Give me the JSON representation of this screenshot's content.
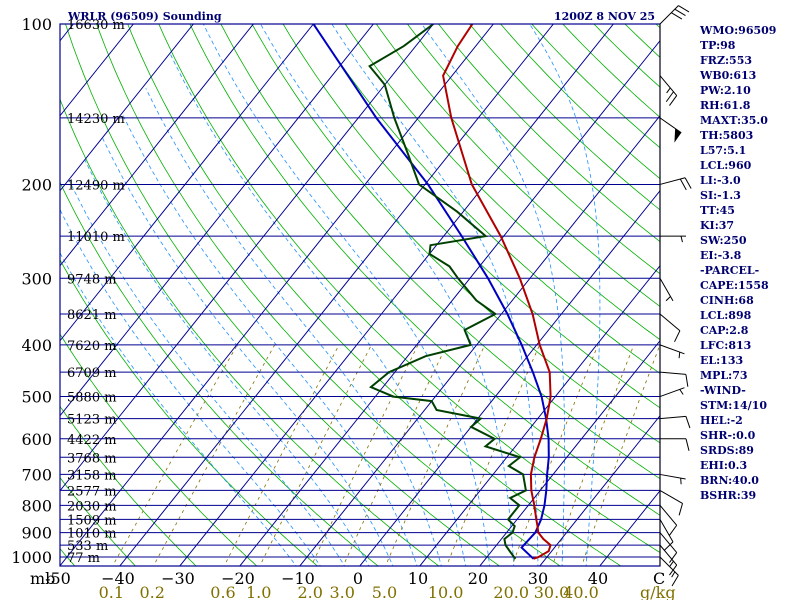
{
  "header": {
    "left": "WRLR (96509) Sounding",
    "right": "1200Z  8 NOV 25"
  },
  "chart_data": {
    "type": "skew-t",
    "title": "WRLR (96509) Sounding",
    "time": "1200Z  8 NOV 25",
    "pressure_ticks": [
      100,
      200,
      300,
      400,
      500,
      600,
      700,
      800,
      900,
      1000
    ],
    "temperature_ticks": [
      -50,
      -40,
      -30,
      -20,
      -10,
      0,
      10,
      20,
      30,
      40
    ],
    "temperature_labels": [
      "-50",
      "−40",
      "−30",
      "−20",
      "−10",
      "0",
      "10",
      "20",
      "30",
      "40"
    ],
    "pressure_unit_label": "mb",
    "temperature_unit_label": "C",
    "mixing_ratio_ticks": [
      "0.1",
      "0.2",
      "0.6",
      "1.0",
      "2.0",
      "3.0",
      "5.0",
      "10.0",
      "20.0",
      "30.0",
      "40.0"
    ],
    "mixing_ratio_values": [
      0.1,
      0.2,
      0.6,
      1.0,
      2.0,
      3.0,
      5.0,
      10.0,
      20.0,
      30.0,
      40.0
    ],
    "mixing_ratio_unit": "g/kg",
    "height_levels": [
      {
        "p": 100,
        "label": "16630 m"
      },
      {
        "p": 150,
        "label": "14230 m"
      },
      {
        "p": 200,
        "label": "12490 m"
      },
      {
        "p": 250,
        "label": "11010 m"
      },
      {
        "p": 300,
        "label": "9748 m"
      },
      {
        "p": 350,
        "label": "8621 m"
      },
      {
        "p": 400,
        "label": "7620 m"
      },
      {
        "p": 450,
        "label": "6709 m"
      },
      {
        "p": 500,
        "label": "5880 m"
      },
      {
        "p": 550,
        "label": "5123 m"
      },
      {
        "p": 600,
        "label": "4422 m"
      },
      {
        "p": 650,
        "label": "3768 m"
      },
      {
        "p": 700,
        "label": "3158 m"
      },
      {
        "p": 750,
        "label": "2577 m"
      },
      {
        "p": 800,
        "label": "2030 m"
      },
      {
        "p": 850,
        "label": "1509 m"
      },
      {
        "p": 900,
        "label": "1010 m"
      },
      {
        "p": 950,
        "label": "533 m"
      },
      {
        "p": 1000,
        "label": "77 m"
      }
    ],
    "temperature_profile": [
      [
        1008,
        28
      ],
      [
        1000,
        28.6
      ],
      [
        975,
        29.5
      ],
      [
        950,
        29
      ],
      [
        925,
        27
      ],
      [
        900,
        25.3
      ],
      [
        875,
        24.3
      ],
      [
        850,
        23.2
      ],
      [
        800,
        21
      ],
      [
        750,
        18.5
      ],
      [
        700,
        16.3
      ],
      [
        650,
        14.6
      ],
      [
        600,
        13.2
      ],
      [
        550,
        11.5
      ],
      [
        500,
        9.2
      ],
      [
        450,
        5.8
      ],
      [
        400,
        0.5
      ],
      [
        350,
        -4.8
      ],
      [
        300,
        -11.7
      ],
      [
        250,
        -20.5
      ],
      [
        200,
        -32.2
      ],
      [
        150,
        -44.5
      ],
      [
        125,
        -51.5
      ],
      [
        110,
        -53
      ],
      [
        100,
        -53.5
      ]
    ],
    "dewpoint_profile": [
      [
        1008,
        25
      ],
      [
        1000,
        24.5
      ],
      [
        975,
        23
      ],
      [
        950,
        21.5
      ],
      [
        925,
        20.5
      ],
      [
        900,
        21
      ],
      [
        875,
        20.5
      ],
      [
        850,
        18.5
      ],
      [
        800,
        18.5
      ],
      [
        775,
        16
      ],
      [
        750,
        17.6
      ],
      [
        700,
        15
      ],
      [
        675,
        11.5
      ],
      [
        650,
        12.2
      ],
      [
        620,
        5
      ],
      [
        600,
        5.5
      ],
      [
        570,
        0
      ],
      [
        550,
        0.5
      ],
      [
        530,
        -8
      ],
      [
        510,
        -10
      ],
      [
        500,
        -17
      ],
      [
        480,
        -22
      ],
      [
        450,
        -21
      ],
      [
        420,
        -17
      ],
      [
        400,
        -11
      ],
      [
        375,
        -14
      ],
      [
        350,
        -11
      ],
      [
        330,
        -16
      ],
      [
        300,
        -22
      ],
      [
        285,
        -25
      ],
      [
        270,
        -30
      ],
      [
        260,
        -31
      ],
      [
        250,
        -23
      ],
      [
        225,
        -31
      ],
      [
        200,
        -41
      ],
      [
        175,
        -47
      ],
      [
        150,
        -54
      ],
      [
        130,
        -60
      ],
      [
        120,
        -65
      ],
      [
        110,
        -62
      ],
      [
        100,
        -60
      ]
    ],
    "parcel_profile": [
      [
        1008,
        28
      ],
      [
        960,
        24.5
      ],
      [
        900,
        24.8
      ],
      [
        850,
        24
      ],
      [
        800,
        22.7
      ],
      [
        750,
        21
      ],
      [
        700,
        19
      ],
      [
        650,
        17
      ],
      [
        600,
        14.5
      ],
      [
        550,
        11.4
      ],
      [
        500,
        7.7
      ],
      [
        450,
        3
      ],
      [
        400,
        -2.5
      ],
      [
        350,
        -9
      ],
      [
        300,
        -17
      ],
      [
        250,
        -27
      ],
      [
        200,
        -39.5
      ],
      [
        150,
        -57
      ],
      [
        100,
        -80
      ]
    ],
    "wind_profile": [
      {
        "p": 1000,
        "dir": 135,
        "spd": 15
      },
      {
        "p": 950,
        "dir": 140,
        "spd": 15
      },
      {
        "p": 900,
        "dir": 140,
        "spd": 10
      },
      {
        "p": 850,
        "dir": 150,
        "spd": 10
      },
      {
        "p": 800,
        "dir": 140,
        "spd": 10
      },
      {
        "p": 750,
        "dir": 120,
        "spd": 10
      },
      {
        "p": 700,
        "dir": 100,
        "spd": 5
      },
      {
        "p": 600,
        "dir": 90,
        "spd": 10
      },
      {
        "p": 550,
        "dir": 85,
        "spd": 10
      },
      {
        "p": 500,
        "dir": 70,
        "spd": 5
      },
      {
        "p": 450,
        "dir": 95,
        "spd": 10
      },
      {
        "p": 400,
        "dir": 110,
        "spd": 5
      },
      {
        "p": 350,
        "dir": 130,
        "spd": 10
      },
      {
        "p": 300,
        "dir": 150,
        "spd": 5
      },
      {
        "p": 250,
        "dir": 90,
        "spd": 5
      },
      {
        "p": 200,
        "dir": 75,
        "spd": 20
      },
      {
        "p": 150,
        "dir": 125,
        "spd": 50
      },
      {
        "p": 125,
        "dir": 140,
        "spd": 25
      },
      {
        "p": 100,
        "dir": 45,
        "spd": 30
      }
    ]
  },
  "colors": {
    "isobar": "#000090",
    "isotherm": "#000090",
    "dry_adiabat": "#00b000",
    "moist_adiabat": "#2090ff",
    "mixing_ratio": "#807000",
    "temperature": "#b00000",
    "dewpoint": "#004000",
    "parcel": "#0000c0",
    "wind": "#000000",
    "index_text": "#000070"
  },
  "indices": [
    "WMO:96509",
    "TP:98",
    "FRZ:553",
    "WB0:613",
    "PW:2.10",
    "RH:61.8",
    "MAXT:35.0",
    "TH:5803",
    "L57:5.1",
    "LCL:960",
    "LI:-3.0",
    "SI:-1.3",
    "TT:45",
    "KI:37",
    "SW:250",
    "EI:-3.8",
    "-PARCEL-",
    "CAPE:1558",
    "CINH:68",
    "LCL:898",
    "CAP:2.8",
    "LFC:813",
    "EL:133",
    "MPL:73",
    "-WIND-",
    "STM:14/10",
    "HEL:-2",
    "SHR-:0.0",
    "SRDS:89",
    "EHI:0.3",
    "BRN:40.0",
    "BSHR:39"
  ]
}
